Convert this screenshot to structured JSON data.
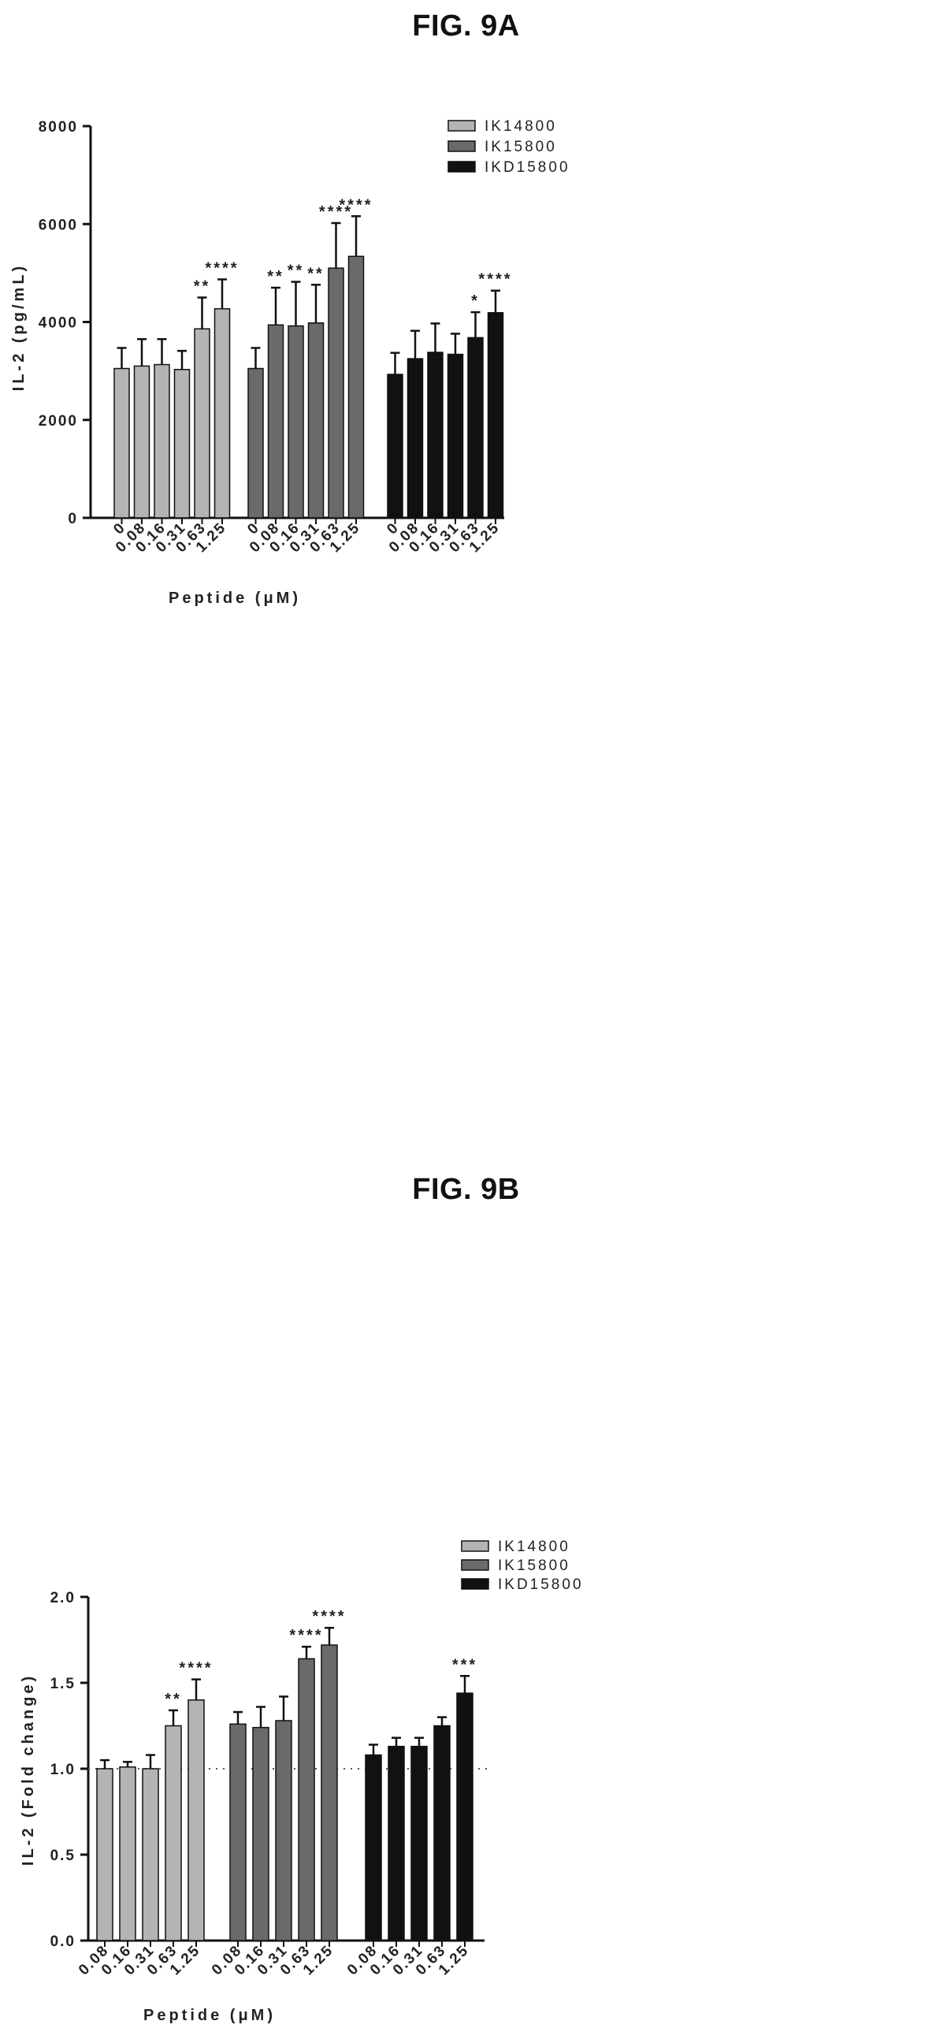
{
  "figure_a": {
    "title": "FIG. 9A"
  },
  "figure_b": {
    "title": "FIG. 9B"
  },
  "chart_data": [
    {
      "type": "bar",
      "title": "FIG. 9A",
      "xlabel": "Peptide (μM)",
      "ylabel": "IL-2 (pg/mL)",
      "ylim": [
        0,
        8000
      ],
      "yticks": [
        "0",
        "2000",
        "4000",
        "6000",
        "8000"
      ],
      "grid": false,
      "legend_position": "top-right",
      "categories": [
        "0",
        "0.08",
        "0.16",
        "0.31",
        "0.63",
        "1.25"
      ],
      "series": [
        {
          "name": "IK14800",
          "color": "#b4b4b4",
          "values": [
            3050,
            3100,
            3130,
            3030,
            3860,
            4270
          ],
          "errors": [
            420,
            550,
            520,
            380,
            640,
            600
          ],
          "significance": [
            "",
            "",
            "",
            "",
            "**",
            "****"
          ]
        },
        {
          "name": "IK15800",
          "color": "#6a6a6a",
          "values": [
            3050,
            3940,
            3920,
            3980,
            5100,
            5340
          ],
          "errors": [
            420,
            760,
            900,
            780,
            920,
            820
          ],
          "significance": [
            "",
            "**",
            "**",
            "**",
            "****",
            "****"
          ]
        },
        {
          "name": "IKD15800",
          "color": "#111111",
          "values": [
            2930,
            3250,
            3380,
            3340,
            3680,
            4190
          ],
          "errors": [
            440,
            570,
            590,
            420,
            520,
            450
          ],
          "significance": [
            "",
            "",
            "",
            "",
            "*",
            "****"
          ]
        }
      ]
    },
    {
      "type": "bar",
      "title": "FIG. 9B",
      "xlabel": "Peptide (μM)",
      "ylabel": "IL-2 (Fold change)",
      "ylim": [
        0,
        2.0
      ],
      "yticks": [
        "0.0",
        "0.5",
        "1.0",
        "1.5",
        "2.0"
      ],
      "reference_line": 1.0,
      "grid": false,
      "legend_position": "top-right",
      "categories": [
        "0.08",
        "0.16",
        "0.31",
        "0.63",
        "1.25"
      ],
      "series": [
        {
          "name": "IK14800",
          "color": "#b4b4b4",
          "values": [
            1.0,
            1.01,
            1.0,
            1.25,
            1.4
          ],
          "errors": [
            0.05,
            0.03,
            0.08,
            0.09,
            0.12
          ],
          "significance": [
            "",
            "",
            "",
            "**",
            "****"
          ]
        },
        {
          "name": "IK15800",
          "color": "#6a6a6a",
          "values": [
            1.26,
            1.24,
            1.28,
            1.64,
            1.72
          ],
          "errors": [
            0.07,
            0.12,
            0.14,
            0.07,
            0.1
          ],
          "significance": [
            "",
            "",
            "",
            "****",
            "****"
          ]
        },
        {
          "name": "IKD15800",
          "color": "#111111",
          "values": [
            1.08,
            1.13,
            1.13,
            1.25,
            1.44
          ],
          "errors": [
            0.06,
            0.05,
            0.05,
            0.05,
            0.1
          ],
          "significance": [
            "",
            "",
            "",
            "",
            "***"
          ]
        }
      ]
    }
  ]
}
